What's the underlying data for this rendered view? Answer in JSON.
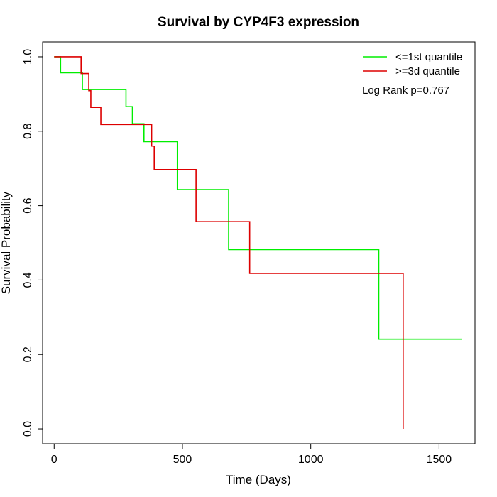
{
  "chart_data": {
    "type": "line",
    "step": true,
    "title": "Survival by CYP4F3 expression",
    "xlabel": "Time (Days)",
    "ylabel": "Survival Probability",
    "xlim": [
      -45,
      1640
    ],
    "ylim": [
      -0.04,
      1.04
    ],
    "xticks": [
      0,
      500,
      1000,
      1500
    ],
    "yticks": [
      0.0,
      0.2,
      0.4,
      0.6,
      0.8,
      1.0
    ],
    "xtick_labels": [
      "0",
      "500",
      "1000",
      "1500"
    ],
    "ytick_labels": [
      "0.0",
      "0.2",
      "0.4",
      "0.6",
      "0.8",
      "1.0"
    ],
    "grid": false,
    "legend_position": "top-right",
    "annotation": "Log Rank p=0.767",
    "series": [
      {
        "name": "<=1st quantile",
        "color": "#00ee00",
        "x": [
          0,
          25,
          110,
          280,
          305,
          350,
          480,
          680,
          1265,
          1590
        ],
        "y": [
          1.0,
          0.957,
          0.912,
          0.866,
          0.82,
          0.772,
          0.643,
          0.482,
          0.241,
          0.241
        ]
      },
      {
        "name": ">=3d quantile",
        "color": "#dd0000",
        "x": [
          0,
          105,
          135,
          143,
          182,
          380,
          390,
          553,
          762,
          1360
        ],
        "y": [
          1.0,
          0.955,
          0.909,
          0.864,
          0.818,
          0.76,
          0.697,
          0.557,
          0.418,
          0.0
        ]
      }
    ]
  }
}
